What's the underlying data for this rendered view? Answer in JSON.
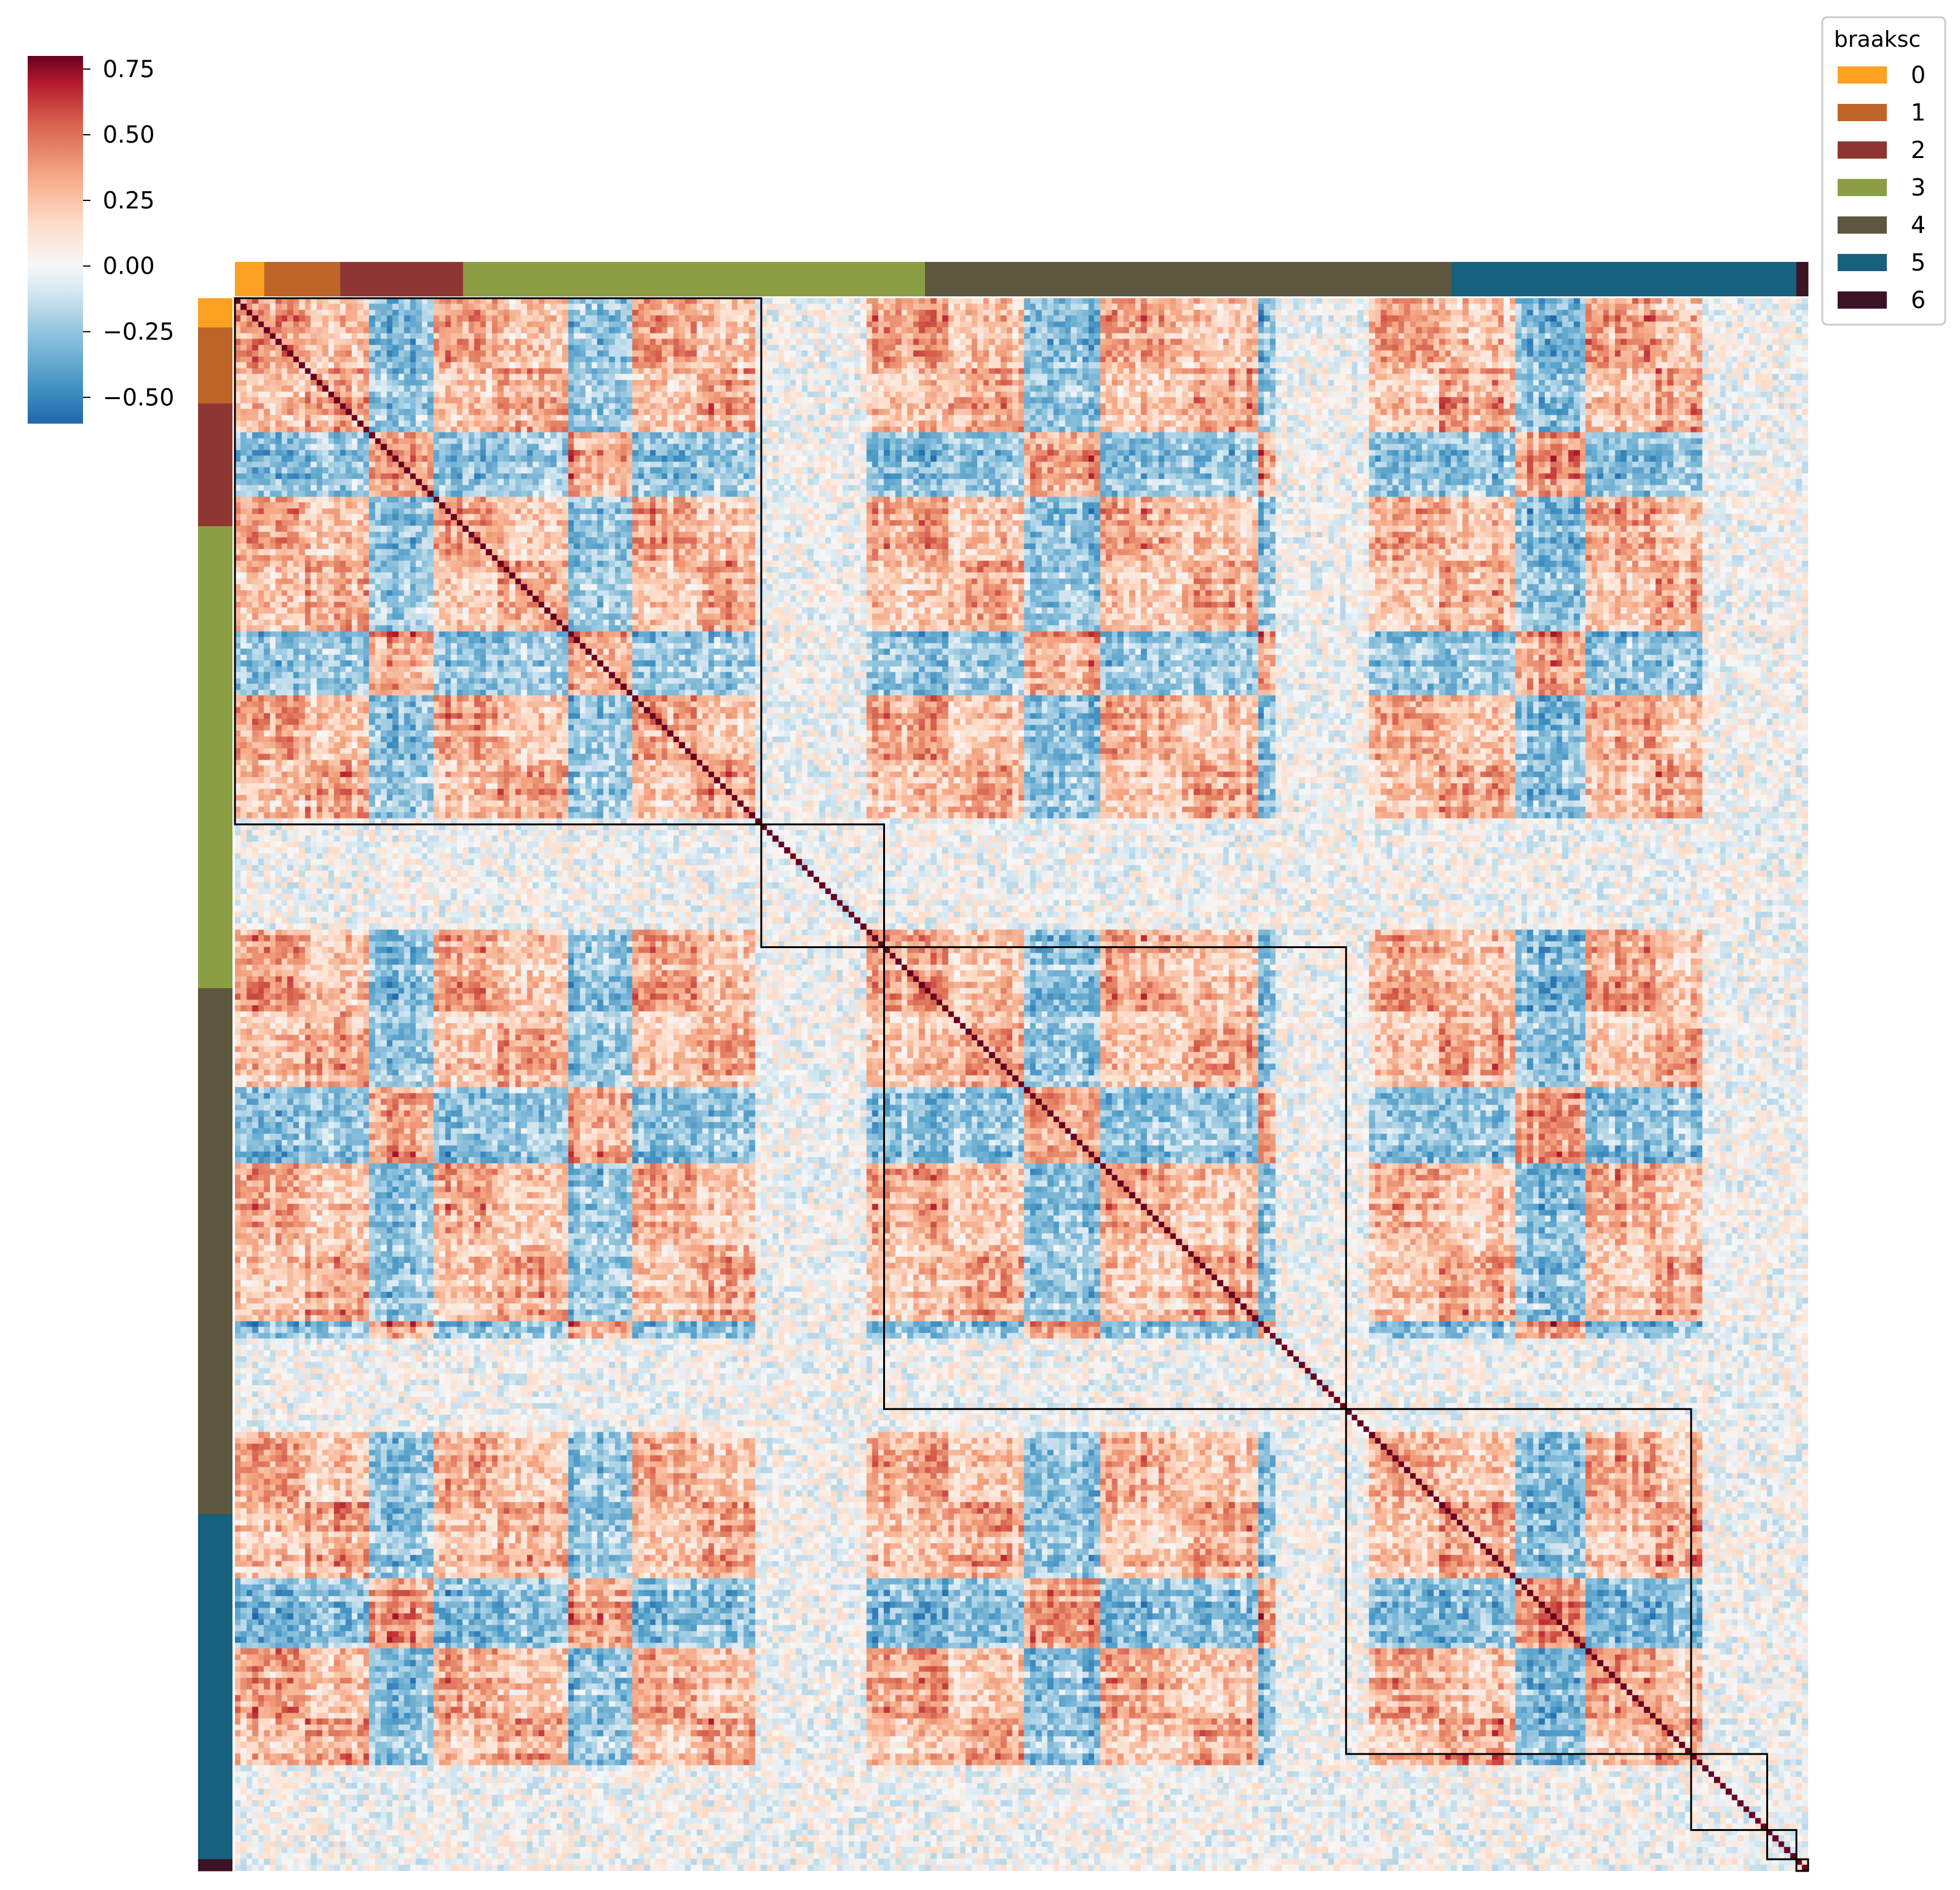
{
  "chart_data": {
    "type": "heatmap",
    "title": "",
    "colormap": "RdBu_r",
    "value_range": [
      -0.6,
      0.8
    ],
    "colorbar": {
      "ticks": [
        0.75,
        0.5,
        0.25,
        0.0,
        -0.25,
        -0.5
      ],
      "tick_labels": [
        "0.75",
        "0.50",
        "0.25",
        "0.00",
        "−0.25",
        "−0.50"
      ]
    },
    "legend": {
      "title": "braaksc",
      "placement": "top-right",
      "entries": [
        {
          "label": "0",
          "color": "#fca222"
        },
        {
          "label": "1",
          "color": "#bd6429"
        },
        {
          "label": "2",
          "color": "#8e3732"
        },
        {
          "label": "3",
          "color": "#8c9e43"
        },
        {
          "label": "4",
          "color": "#5c573e"
        },
        {
          "label": "5",
          "color": "#17607e"
        },
        {
          "label": "6",
          "color": "#3c1324"
        }
      ]
    },
    "n_samples": 269,
    "braak_groups": [
      {
        "stage": "0",
        "count": 5
      },
      {
        "stage": "1",
        "count": 13
      },
      {
        "stage": "2",
        "count": 21
      },
      {
        "stage": "3",
        "count": 79
      },
      {
        "stage": "4",
        "count": 90
      },
      {
        "stage": "5",
        "count": 59
      },
      {
        "stage": "6",
        "count": 2
      }
    ],
    "cluster_boxes": [
      {
        "start": 0,
        "end": 90
      },
      {
        "start": 90,
        "end": 111
      },
      {
        "start": 111,
        "end": 190
      },
      {
        "start": 190,
        "end": 249
      },
      {
        "start": 249,
        "end": 262
      },
      {
        "start": 262,
        "end": 267
      },
      {
        "start": 267,
        "end": 269
      }
    ],
    "diagonal_value": 1.0
  }
}
